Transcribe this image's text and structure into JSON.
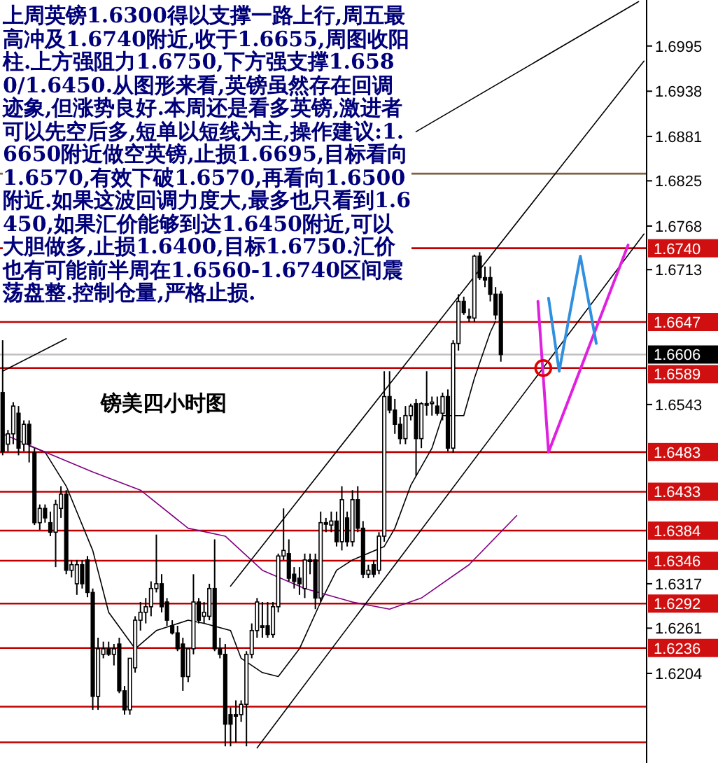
{
  "chart_data": {
    "type": "candlestick",
    "title": "镑美四小时图",
    "annotations": [
      "上周英镑1.6300得以支撑一路上行,周五最高冲及1.6740附近,收于1.6655,周图收阳柱.上方强阻力1.6750,下方强支撑1.6580/1.6450.从图形来看,英镑虽然存在回调迹象,但涨势良好.本周还是看多英镑,激进者可以先空后多,短单以短线为主,操作建议:1.6650附近做空英镑,止损1.6695,目标看向1.6570,有效下破1.6570,再看向1.6500附近.如果这波回调力度大,最多也只看到1.6450,如果汇价能够到达1.6450附近,可以大胆做多,止损1.6400,目标1.6750.汇价也有可能前半周在1.6560-1.6740区间震荡盘整.控制仓量,严格止损."
    ],
    "categories": [
      null,
      null,
      null,
      null,
      null,
      null,
      null,
      null,
      null,
      null,
      null,
      null,
      null,
      null,
      null,
      null,
      null,
      null,
      null,
      null,
      null,
      null,
      null,
      null,
      null,
      null,
      null,
      null,
      null,
      null,
      null,
      null,
      null,
      null,
      null,
      null,
      null,
      null,
      null,
      null,
      null,
      null,
      null,
      null,
      null,
      null,
      null,
      null,
      null,
      null,
      null,
      null,
      null,
      null,
      null,
      null,
      null,
      null,
      null,
      null,
      null,
      null,
      null,
      null,
      null,
      null,
      null,
      null,
      null,
      null,
      null,
      null,
      null,
      null,
      null,
      null,
      null,
      null,
      null,
      null,
      null,
      null,
      null,
      null,
      null,
      null,
      null,
      null,
      null,
      null,
      null,
      null,
      null,
      null,
      null,
      null,
      null,
      null,
      null,
      null,
      null,
      null,
      null,
      null,
      null,
      null,
      null,
      null,
      null,
      null,
      null,
      null,
      null,
      null,
      null,
      null,
      null,
      null,
      null,
      null,
      null,
      null
    ],
    "ohlc": [
      [
        1.6558,
        1.6624,
        1.6479,
        1.6484
      ],
      [
        1.6493,
        1.6511,
        1.6484,
        1.6506
      ],
      [
        1.6506,
        1.6546,
        1.6493,
        1.6541
      ],
      [
        1.6532,
        1.6541,
        1.6479,
        1.6488
      ],
      [
        1.6493,
        1.6523,
        1.6484,
        1.6518
      ],
      [
        1.6518,
        1.6523,
        1.647,
        1.6493
      ],
      [
        1.6482,
        1.6488,
        1.6391,
        1.6394
      ],
      [
        1.6394,
        1.6417,
        1.6385,
        1.6412
      ],
      [
        1.6412,
        1.6417,
        1.6394,
        1.64
      ],
      [
        1.6394,
        1.6408,
        1.6377,
        1.6382
      ],
      [
        1.6382,
        1.6423,
        1.6338,
        1.6417
      ],
      [
        1.6412,
        1.644,
        1.64,
        1.643
      ],
      [
        1.643,
        1.6435,
        1.6329,
        1.6334
      ],
      [
        1.6334,
        1.6347,
        1.6325,
        1.6341
      ],
      [
        1.6317,
        1.6347,
        1.6303,
        1.6341
      ],
      [
        1.6341,
        1.6347,
        1.6311,
        1.6317
      ],
      [
        1.6347,
        1.6352,
        1.63,
        1.6306
      ],
      [
        1.6306,
        1.6311,
        1.6158,
        1.6175
      ],
      [
        1.6175,
        1.6249,
        1.6158,
        1.6235
      ],
      [
        1.6228,
        1.6244,
        1.6223,
        1.6235
      ],
      [
        1.6235,
        1.6244,
        1.6226,
        1.6228
      ],
      [
        1.6228,
        1.6241,
        1.6214,
        1.6235
      ],
      [
        1.6241,
        1.6249,
        1.6179,
        1.6182
      ],
      [
        1.6182,
        1.6188,
        1.6152,
        1.6158
      ],
      [
        1.6158,
        1.6223,
        1.6152,
        1.6223
      ],
      [
        1.6211,
        1.6276,
        1.6205,
        1.6271
      ],
      [
        1.6271,
        1.6294,
        1.6258,
        1.6281
      ],
      [
        1.6281,
        1.6299,
        1.6267,
        1.6288
      ],
      [
        1.6288,
        1.632,
        1.6276,
        1.6311
      ],
      [
        1.6311,
        1.6379,
        1.6306,
        1.6317
      ],
      [
        1.6317,
        1.6329,
        1.6281,
        1.6288
      ],
      [
        1.6294,
        1.6299,
        1.6264,
        1.6271
      ],
      [
        1.6264,
        1.6271,
        1.6253,
        1.6255
      ],
      [
        1.6255,
        1.6264,
        1.6232,
        1.6235
      ],
      [
        1.6241,
        1.6249,
        1.6182,
        1.62
      ],
      [
        1.62,
        1.6235,
        1.6193,
        1.6235
      ],
      [
        1.6235,
        1.6329,
        1.6228,
        1.6294
      ],
      [
        1.6294,
        1.6299,
        1.6267,
        1.6271
      ],
      [
        1.6276,
        1.6294,
        1.6267,
        1.6281
      ],
      [
        1.6276,
        1.6317,
        1.6271,
        1.6311
      ],
      [
        1.6311,
        1.6373,
        1.6232,
        1.6235
      ],
      [
        1.6235,
        1.6249,
        1.6223,
        1.6228
      ],
      [
        1.6228,
        1.6241,
        1.6112,
        1.614
      ],
      [
        1.6152,
        1.6161,
        1.6112,
        1.614
      ],
      [
        1.6152,
        1.617,
        1.6117,
        1.615
      ],
      [
        1.6152,
        1.617,
        1.6143,
        1.6165
      ],
      [
        1.6165,
        1.6232,
        1.6112,
        1.6228
      ],
      [
        1.6228,
        1.6267,
        1.6223,
        1.6258
      ],
      [
        1.6258,
        1.6299,
        1.6249,
        1.6294
      ],
      [
        1.6264,
        1.6294,
        1.6249,
        1.6262
      ],
      [
        1.6264,
        1.6294,
        1.6249,
        1.6253
      ],
      [
        1.6253,
        1.6294,
        1.6249,
        1.6288
      ],
      [
        1.6288,
        1.6355,
        1.6281,
        1.6352
      ],
      [
        1.6352,
        1.6412,
        1.6347,
        1.6359
      ],
      [
        1.6355,
        1.6373,
        1.632,
        1.6324
      ],
      [
        1.6329,
        1.6338,
        1.6311,
        1.632
      ],
      [
        1.6324,
        1.6338,
        1.6303,
        1.6317
      ],
      [
        1.6311,
        1.6355,
        1.6299,
        1.6347
      ],
      [
        1.6347,
        1.6355,
        1.6329,
        1.6345
      ],
      [
        1.6347,
        1.6355,
        1.6285,
        1.6299
      ],
      [
        1.6299,
        1.6408,
        1.6294,
        1.6394
      ],
      [
        1.6394,
        1.64,
        1.6382,
        1.6392
      ],
      [
        1.6391,
        1.6408,
        1.6382,
        1.6396
      ],
      [
        1.6396,
        1.6408,
        1.6364,
        1.637
      ],
      [
        1.637,
        1.644,
        1.6359,
        1.6423
      ],
      [
        1.64,
        1.6408,
        1.6364,
        1.637
      ],
      [
        1.637,
        1.6435,
        1.6364,
        1.6423
      ],
      [
        1.6423,
        1.644,
        1.6382,
        1.6387
      ],
      [
        1.6387,
        1.6396,
        1.6324,
        1.6329
      ],
      [
        1.6329,
        1.6341,
        1.6324,
        1.6334
      ],
      [
        1.6341,
        1.6347,
        1.6325,
        1.6329
      ],
      [
        1.6334,
        1.6382,
        1.6329,
        1.6377
      ],
      [
        1.6377,
        1.6585,
        1.637,
        1.6553
      ],
      [
        1.6553,
        1.6585,
        1.6532,
        1.6536
      ],
      [
        1.6536,
        1.655,
        1.6506,
        1.6518
      ],
      [
        1.6518,
        1.6527,
        1.6493,
        1.65
      ],
      [
        1.65,
        1.6541,
        1.6493,
        1.6529
      ],
      [
        1.6529,
        1.6544,
        1.6523,
        1.6541
      ],
      [
        1.6544,
        1.655,
        1.6453,
        1.65
      ],
      [
        1.65,
        1.6546,
        1.6488,
        1.6544
      ],
      [
        1.6544,
        1.6585,
        1.6529,
        1.6542
      ],
      [
        1.6544,
        1.6553,
        1.6529,
        1.6546
      ],
      [
        1.6541,
        1.6553,
        1.6529,
        1.6532
      ],
      [
        1.6532,
        1.6558,
        1.6523,
        1.6553
      ],
      [
        1.6553,
        1.6562,
        1.6484,
        1.6488
      ],
      [
        1.6488,
        1.6624,
        1.6482,
        1.662
      ],
      [
        1.662,
        1.6682,
        1.6611,
        1.6673
      ],
      [
        1.6673,
        1.6679,
        1.6656,
        1.6659
      ],
      [
        1.6654,
        1.6664,
        1.6647,
        1.6652
      ],
      [
        1.6652,
        1.6732,
        1.6647,
        1.673
      ],
      [
        1.673,
        1.6735,
        1.67,
        1.6703
      ],
      [
        1.6703,
        1.6717,
        1.6691,
        1.67
      ],
      [
        1.6703,
        1.6717,
        1.6673,
        1.6682
      ],
      [
        1.6682,
        1.6691,
        1.665,
        1.6656
      ],
      [
        1.6682,
        1.6686,
        1.6597,
        1.6606
      ],
      null,
      null,
      null,
      null,
      null,
      null,
      null,
      null,
      null,
      null,
      null,
      null,
      null,
      null,
      null,
      null,
      null,
      null,
      null,
      null,
      null,
      null,
      null,
      null,
      null,
      null,
      null
    ],
    "series": [
      {
        "type": "line",
        "color": "#000000",
        "values": [
          null,
          null,
          null,
          null,
          null,
          1.6491,
          null,
          null,
          1.6483,
          null,
          null,
          null,
          1.644,
          null,
          null,
          null,
          null,
          1.6359,
          null,
          null,
          1.6281,
          null,
          null,
          null,
          null,
          1.6235,
          null,
          null,
          null,
          1.6258,
          null,
          null,
          null,
          null,
          null,
          1.6271,
          null,
          null,
          1.6267,
          null,
          null,
          null,
          null,
          1.6258,
          null,
          1.6223,
          null,
          null,
          null,
          1.6205,
          null,
          null,
          1.62,
          null,
          null,
          null,
          1.6235,
          null,
          null,
          null,
          1.6294,
          null,
          null,
          1.6334,
          null,
          null,
          1.6347,
          null,
          null,
          null,
          null,
          null,
          1.6364,
          null,
          1.6387,
          null,
          null,
          1.6441,
          null,
          null,
          null,
          1.6488,
          null,
          1.6529,
          null,
          null,
          null,
          1.6529,
          null,
          1.6576,
          null,
          null,
          1.6634,
          1.6648,
          null,
          null,
          null,
          null,
          null,
          null,
          null,
          null,
          null,
          null,
          null,
          null,
          null,
          null,
          null,
          null,
          null,
          null,
          null,
          null,
          null,
          null,
          null,
          null,
          null,
          null,
          null,
          null
        ]
      },
      {
        "type": "line",
        "color": "#800080",
        "values": [
          1.6506,
          null,
          null,
          null,
          null,
          null,
          null,
          null,
          1.6483,
          null,
          null,
          null,
          null,
          null,
          null,
          null,
          null,
          1.6458,
          null,
          null,
          null,
          null,
          null,
          null,
          null,
          null,
          1.6435,
          null,
          null,
          null,
          null,
          null,
          null,
          null,
          null,
          1.6387,
          null,
          null,
          null,
          null,
          null,
          null,
          1.6377,
          null,
          null,
          null,
          null,
          null,
          null,
          1.6334,
          null,
          null,
          null,
          null,
          null,
          null,
          null,
          1.6311,
          null,
          null,
          null,
          null,
          null,
          null,
          null,
          null,
          1.6294,
          null,
          null,
          null,
          null,
          null,
          null,
          1.6285,
          null,
          null,
          null,
          null,
          null,
          1.6299,
          null,
          null,
          null,
          null,
          null,
          null,
          null,
          null,
          1.6341,
          null,
          null,
          null,
          null,
          null,
          null,
          null,
          null,
          1.6403,
          null,
          null,
          null,
          null,
          null,
          null,
          null,
          null,
          null,
          null,
          null,
          null,
          null,
          null,
          null,
          null,
          null,
          null,
          null,
          null,
          null,
          null,
          null,
          null
        ]
      },
      {
        "type": "line",
        "color": "#000000",
        "values": [
          null,
          null,
          null,
          null,
          null,
          null,
          null,
          null,
          null,
          null,
          null,
          null,
          null,
          null,
          null,
          null,
          null,
          null,
          null,
          null,
          null,
          null,
          null,
          null,
          null,
          null,
          null,
          null,
          null,
          null,
          null,
          null,
          null,
          null,
          null,
          null,
          null,
          null,
          null,
          null,
          null,
          null,
          null,
          null,
          null,
          null,
          null,
          null,
          null,
          null,
          null,
          null,
          null,
          null,
          null,
          null,
          null,
          null,
          null,
          null,
          null,
          null,
          null,
          null,
          null,
          null,
          null,
          null,
          null,
          null,
          null,
          null,
          null,
          null,
          null,
          null,
          null,
          null,
          1.6887,
          null,
          null,
          null,
          null,
          null,
          null,
          null,
          null,
          null,
          null,
          null,
          null,
          null,
          null,
          null,
          null,
          null,
          null,
          null,
          null,
          null,
          null,
          null,
          null,
          null,
          null,
          null,
          null,
          null,
          null,
          null,
          null,
          null,
          null,
          null,
          null,
          null,
          null,
          null,
          null,
          null,
          1.7051,
          null
        ]
      },
      {
        "type": "line",
        "color": "#000000",
        "values": [
          1.6585,
          null,
          null,
          null,
          null,
          null,
          null,
          null,
          null,
          null,
          null,
          null,
          1.6626,
          null,
          null,
          null,
          null,
          null,
          null,
          null,
          null,
          null,
          null,
          null,
          null,
          null,
          null,
          null,
          null,
          null,
          null,
          null,
          null,
          null,
          null,
          null,
          null,
          null,
          null,
          null,
          null,
          null,
          null,
          null,
          null,
          null,
          null,
          null,
          null,
          null,
          null,
          null,
          null,
          null,
          null,
          null,
          null,
          null,
          null,
          null,
          null,
          null,
          null,
          null,
          null,
          null,
          null,
          null,
          null,
          null,
          null,
          null,
          null,
          null,
          null,
          null,
          null,
          null,
          null,
          null,
          null,
          null,
          null,
          null,
          null,
          null,
          null,
          null,
          null,
          null,
          null,
          null,
          null,
          null,
          null,
          null,
          null,
          null,
          null,
          null,
          null,
          null,
          null,
          null,
          null,
          null,
          null,
          null,
          null,
          null,
          null,
          null,
          null,
          null,
          null,
          null,
          null,
          null,
          null,
          null,
          null,
          null
        ]
      },
      {
        "type": "line",
        "color": "#000000",
        "values": [
          null,
          null,
          null,
          null,
          null,
          null,
          null,
          null,
          null,
          null,
          null,
          null,
          null,
          null,
          null,
          null,
          null,
          null,
          null,
          null,
          null,
          null,
          null,
          null,
          null,
          null,
          null,
          null,
          null,
          null,
          null,
          null,
          null,
          null,
          null,
          null,
          null,
          null,
          null,
          null,
          null,
          null,
          null,
          1.6314,
          null,
          null,
          null,
          null,
          null,
          null,
          null,
          null,
          null,
          null,
          null,
          null,
          null,
          null,
          null,
          null,
          null,
          null,
          null,
          null,
          null,
          null,
          null,
          null,
          null,
          null,
          null,
          null,
          null,
          null,
          null,
          null,
          null,
          null,
          null,
          null,
          null,
          null,
          null,
          null,
          null,
          null,
          null,
          null,
          null,
          null,
          null,
          null,
          null,
          null,
          null,
          null,
          null,
          null,
          null,
          null,
          null,
          null,
          null,
          null,
          null,
          null,
          null,
          null,
          null,
          null,
          null,
          null,
          null,
          null,
          null,
          null,
          null,
          null,
          null,
          null,
          null,
          1.6976
        ]
      },
      {
        "type": "line",
        "color": "#000000",
        "values": [
          null,
          null,
          null,
          null,
          null,
          null,
          null,
          null,
          null,
          null,
          null,
          null,
          null,
          null,
          null,
          null,
          null,
          null,
          null,
          null,
          null,
          null,
          null,
          null,
          null,
          null,
          null,
          null,
          null,
          null,
          null,
          null,
          null,
          null,
          null,
          null,
          null,
          null,
          null,
          null,
          null,
          null,
          null,
          null,
          null,
          null,
          null,
          null,
          1.611,
          null,
          null,
          null,
          null,
          null,
          null,
          null,
          null,
          null,
          null,
          null,
          null,
          null,
          null,
          null,
          null,
          null,
          null,
          null,
          null,
          null,
          null,
          null,
          null,
          null,
          null,
          null,
          null,
          null,
          null,
          null,
          null,
          null,
          null,
          null,
          null,
          null,
          null,
          null,
          null,
          null,
          null,
          null,
          null,
          null,
          null,
          null,
          null,
          null,
          null,
          null,
          null,
          null,
          null,
          null,
          null,
          null,
          null,
          null,
          null,
          null,
          null,
          null,
          null,
          null,
          null,
          null,
          null,
          null,
          null,
          null,
          null,
          1.6758
        ]
      },
      {
        "type": "line",
        "color": "#e020e0",
        "values": [
          null,
          null,
          null,
          null,
          null,
          null,
          null,
          null,
          null,
          null,
          null,
          null,
          null,
          null,
          null,
          null,
          null,
          null,
          null,
          null,
          null,
          null,
          null,
          null,
          null,
          null,
          null,
          null,
          null,
          null,
          null,
          null,
          null,
          null,
          null,
          null,
          null,
          null,
          null,
          null,
          null,
          null,
          null,
          null,
          null,
          null,
          null,
          null,
          null,
          null,
          null,
          null,
          null,
          null,
          null,
          null,
          null,
          null,
          null,
          null,
          null,
          null,
          null,
          null,
          null,
          null,
          null,
          null,
          null,
          null,
          null,
          null,
          null,
          null,
          null,
          null,
          null,
          null,
          null,
          null,
          null,
          null,
          null,
          null,
          null,
          null,
          null,
          null,
          null,
          null,
          null,
          null,
          null,
          null,
          null,
          null,
          null,
          null,
          null,
          null,
          null,
          1.6673,
          null,
          1.6483,
          null,
          null,
          null,
          null,
          null,
          null,
          null,
          null,
          null,
          null,
          null,
          null,
          null,
          null,
          1.6744,
          null,
          null,
          null
        ]
      },
      {
        "type": "line",
        "color": "#3090e0",
        "values": [
          null,
          null,
          null,
          null,
          null,
          null,
          null,
          null,
          null,
          null,
          null,
          null,
          null,
          null,
          null,
          null,
          null,
          null,
          null,
          null,
          null,
          null,
          null,
          null,
          null,
          null,
          null,
          null,
          null,
          null,
          null,
          null,
          null,
          null,
          null,
          null,
          null,
          null,
          null,
          null,
          null,
          null,
          null,
          null,
          null,
          null,
          null,
          null,
          null,
          null,
          null,
          null,
          null,
          null,
          null,
          null,
          null,
          null,
          null,
          null,
          null,
          null,
          null,
          null,
          null,
          null,
          null,
          null,
          null,
          null,
          null,
          null,
          null,
          null,
          null,
          null,
          null,
          null,
          null,
          null,
          null,
          null,
          null,
          null,
          null,
          null,
          null,
          null,
          null,
          null,
          null,
          null,
          null,
          null,
          null,
          null,
          null,
          null,
          null,
          null,
          null,
          null,
          null,
          1.6677,
          null,
          1.6585,
          null,
          null,
          null,
          1.673,
          null,
          null,
          1.662,
          null,
          null,
          null,
          null,
          null,
          null,
          null,
          null,
          null
        ]
      },
      {
        "type": "scatter",
        "marker": "circle",
        "color": "#e00000",
        "values": [
          null,
          null,
          null,
          null,
          null,
          null,
          null,
          null,
          null,
          null,
          null,
          null,
          null,
          null,
          null,
          null,
          null,
          null,
          null,
          null,
          null,
          null,
          null,
          null,
          null,
          null,
          null,
          null,
          null,
          null,
          null,
          null,
          null,
          null,
          null,
          null,
          null,
          null,
          null,
          null,
          null,
          null,
          null,
          null,
          null,
          null,
          null,
          null,
          null,
          null,
          null,
          null,
          null,
          null,
          null,
          null,
          null,
          null,
          null,
          null,
          null,
          null,
          null,
          null,
          null,
          null,
          null,
          null,
          null,
          null,
          null,
          null,
          null,
          null,
          null,
          null,
          null,
          null,
          null,
          null,
          null,
          null,
          null,
          null,
          null,
          null,
          null,
          null,
          null,
          null,
          null,
          null,
          null,
          null,
          null,
          null,
          null,
          null,
          null,
          null,
          null,
          null,
          1.6589,
          null,
          null,
          null,
          null,
          null,
          null,
          null,
          null,
          null,
          null,
          null,
          null,
          null,
          null,
          null,
          null,
          null,
          null,
          null
        ]
      }
    ],
    "ref_lines": [
      {
        "axis": "y",
        "value": 1.6834,
        "color": "#806040"
      },
      {
        "axis": "y",
        "value": 1.674,
        "label": "1.6740",
        "color": "#c00000"
      },
      {
        "axis": "y",
        "value": 1.6647,
        "label": "1.6647",
        "color": "#c00000"
      },
      {
        "axis": "y",
        "value": 1.6606,
        "label": "1.6606",
        "color": "#c0c0c0"
      },
      {
        "axis": "y",
        "value": 1.6589,
        "label": "1.6589",
        "color": "#c00000"
      },
      {
        "axis": "y",
        "value": 1.6483,
        "label": "1.6483",
        "color": "#c00000"
      },
      {
        "axis": "y",
        "value": 1.6433,
        "label": "1.6433",
        "color": "#c00000"
      },
      {
        "axis": "y",
        "value": 1.6384,
        "label": "1.6384",
        "color": "#c00000"
      },
      {
        "axis": "y",
        "value": 1.6346,
        "label": "1.6346",
        "color": "#c00000"
      },
      {
        "axis": "y",
        "value": 1.6292,
        "label": "1.6292",
        "color": "#c00000"
      },
      {
        "axis": "y",
        "value": 1.6236,
        "label": "1.6236",
        "color": "#c00000"
      },
      {
        "axis": "y",
        "value": 1.6162,
        "color": "#c00000"
      },
      {
        "axis": "y",
        "value": 1.6117,
        "color": "#c00000"
      }
    ],
    "ylim": [
      1.6091,
      1.7053
    ],
    "yticks": [
      1.6995,
      1.6938,
      1.6881,
      1.6825,
      1.6768,
      1.6713,
      1.6543,
      1.6317,
      1.6261,
      1.6204
    ],
    "tick_labels": "y"
  }
}
